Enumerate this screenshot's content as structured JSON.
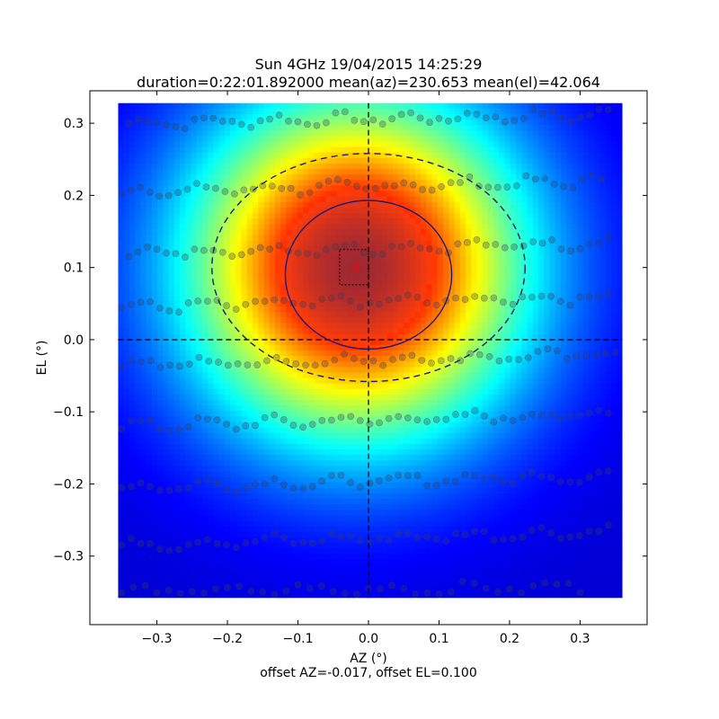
{
  "chart_data": {
    "type": "heatmap",
    "title_line1": "Sun 4GHz 19/04/2015 14:25:29",
    "title_line2": "duration=0:22:01.892000 mean(az)=230.653 mean(el)=42.064",
    "xlabel": "AZ (°)",
    "ylabel": "EL (°)",
    "footer": "offset AZ=-0.017, offset EL=0.100",
    "xlim": [
      -0.395,
      0.395
    ],
    "ylim": [
      -0.395,
      0.345
    ],
    "xticks": [
      -0.3,
      -0.2,
      -0.1,
      0.0,
      0.1,
      0.2,
      0.3
    ],
    "xtick_labels": [
      "−0.3",
      "−0.2",
      "−0.1",
      "0.0",
      "0.1",
      "0.2",
      "0.3"
    ],
    "yticks": [
      -0.3,
      -0.2,
      -0.1,
      0.0,
      0.1,
      0.2,
      0.3
    ],
    "ytick_labels": [
      "−0.3",
      "−0.2",
      "−0.1",
      "0.0",
      "0.1",
      "0.2",
      "0.3"
    ],
    "grid": false,
    "colormap": "jet",
    "heatmap_extent": {
      "az": [
        -0.355,
        0.36
      ],
      "el": [
        -0.358,
        0.328
      ]
    },
    "peak": {
      "az": -0.017,
      "el": 0.1
    },
    "beam_ellipse_solid": {
      "center": [
        0.0,
        0.09
      ],
      "radius_az": 0.118,
      "radius_el": 0.103,
      "color": "#1a1a7a"
    },
    "beam_ellipse_dashed": {
      "center": [
        0.0,
        0.1
      ],
      "radius_az": 0.222,
      "radius_el": 0.158,
      "color": "#1a1a7a"
    },
    "crosshair": {
      "az": 0.0,
      "el": 0.0
    },
    "marker_box": {
      "az": [
        -0.041,
        0.0
      ],
      "el": [
        0.076,
        0.125
      ]
    },
    "peak_marker_color": "#ff0000",
    "scan_point_color": "#3a3a5a",
    "scan_tracks": [
      {
        "el0": 0.3,
        "az_start": -0.34,
        "az_end": 0.34,
        "n": 52,
        "slope": 0.05
      },
      {
        "el0": 0.205,
        "az_start": -0.35,
        "az_end": 0.33,
        "n": 52,
        "slope": 0.06
      },
      {
        "el0": 0.12,
        "az_start": -0.34,
        "az_end": 0.34,
        "n": 52,
        "slope": 0.06
      },
      {
        "el0": 0.045,
        "az_start": -0.35,
        "az_end": 0.34,
        "n": 52,
        "slope": 0.06
      },
      {
        "el0": -0.035,
        "az_start": -0.35,
        "az_end": 0.35,
        "n": 52,
        "slope": 0.06
      },
      {
        "el0": -0.12,
        "az_start": -0.35,
        "az_end": 0.34,
        "n": 52,
        "slope": 0.07
      },
      {
        "el0": -0.205,
        "az_start": -0.35,
        "az_end": 0.34,
        "n": 52,
        "slope": 0.07
      },
      {
        "el0": -0.285,
        "az_start": -0.35,
        "az_end": 0.34,
        "n": 52,
        "slope": 0.08
      },
      {
        "el0": -0.35,
        "az_start": -0.35,
        "az_end": 0.3,
        "n": 40,
        "slope": 0.03
      }
    ]
  }
}
